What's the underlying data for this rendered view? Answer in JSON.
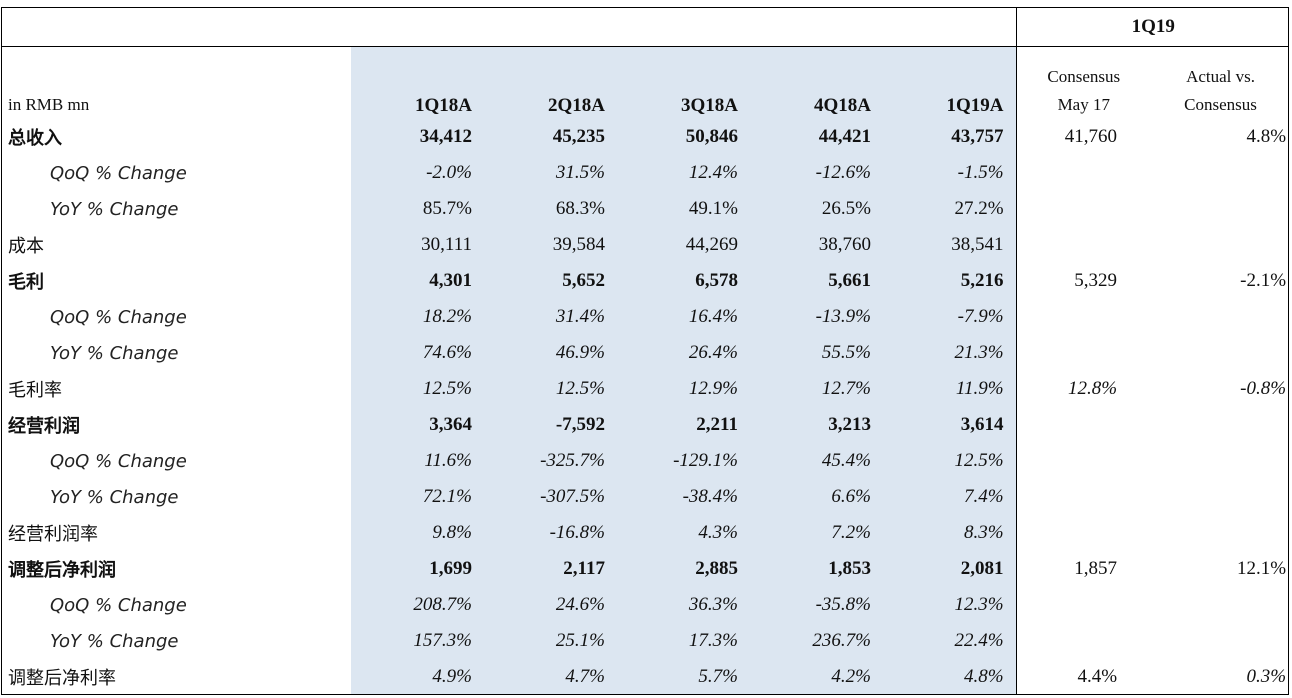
{
  "header": {
    "unit_label": "in RMB mn",
    "group_label": "1Q19",
    "periods": [
      "1Q18A",
      "2Q18A",
      "3Q18A",
      "4Q18A",
      "1Q19A"
    ],
    "consensus_label_line1": "Consensus",
    "consensus_label_line2": "May 17",
    "actual_vs_line1": "Actual vs.",
    "actual_vs_line2": "Consensus"
  },
  "rows": [
    {
      "label": "总收入",
      "style": "bold",
      "values": [
        "34,412",
        "45,235",
        "50,846",
        "44,421",
        "43,757"
      ],
      "consensus": "41,760",
      "actual_vs": "4.8%"
    },
    {
      "label": "QoQ % Change",
      "style": "sub-italic",
      "values": [
        "-2.0%",
        "31.5%",
        "12.4%",
        "-12.6%",
        "-1.5%"
      ],
      "consensus": "",
      "actual_vs": ""
    },
    {
      "label": "YoY % Change",
      "style": "sub",
      "values": [
        "85.7%",
        "68.3%",
        "49.1%",
        "26.5%",
        "27.2%"
      ],
      "consensus": "",
      "actual_vs": ""
    },
    {
      "label": "成本",
      "style": "normal",
      "values": [
        "30,111",
        "39,584",
        "44,269",
        "38,760",
        "38,541"
      ],
      "consensus": "",
      "actual_vs": ""
    },
    {
      "label": "毛利",
      "style": "bold",
      "values": [
        "4,301",
        "5,652",
        "6,578",
        "5,661",
        "5,216"
      ],
      "consensus": "5,329",
      "actual_vs": "-2.1%"
    },
    {
      "label": "QoQ % Change",
      "style": "sub-italic",
      "values": [
        "18.2%",
        "31.4%",
        "16.4%",
        "-13.9%",
        "-7.9%"
      ],
      "consensus": "",
      "actual_vs": ""
    },
    {
      "label": "YoY % Change",
      "style": "sub-italic",
      "values": [
        "74.6%",
        "46.9%",
        "26.4%",
        "55.5%",
        "21.3%"
      ],
      "consensus": "",
      "actual_vs": ""
    },
    {
      "label": "毛利率",
      "style": "normal-italic",
      "values": [
        "12.5%",
        "12.5%",
        "12.9%",
        "12.7%",
        "11.9%"
      ],
      "consensus": "12.8%",
      "actual_vs": "-0.8%"
    },
    {
      "label": "经营利润",
      "style": "bold",
      "values": [
        "3,364",
        "-7,592",
        "2,211",
        "3,213",
        "3,614"
      ],
      "consensus": "",
      "actual_vs": ""
    },
    {
      "label": "QoQ % Change",
      "style": "sub-italic",
      "values": [
        "11.6%",
        "-325.7%",
        "-129.1%",
        "45.4%",
        "12.5%"
      ],
      "consensus": "",
      "actual_vs": ""
    },
    {
      "label": "YoY % Change",
      "style": "sub-italic",
      "values": [
        "72.1%",
        "-307.5%",
        "-38.4%",
        "6.6%",
        "7.4%"
      ],
      "consensus": "",
      "actual_vs": ""
    },
    {
      "label": "经营利润率",
      "style": "normal-italic",
      "values": [
        "9.8%",
        "-16.8%",
        "4.3%",
        "7.2%",
        "8.3%"
      ],
      "consensus": "",
      "actual_vs": ""
    },
    {
      "label": "调整后净利润",
      "style": "bold",
      "values": [
        "1,699",
        "2,117",
        "2,885",
        "1,853",
        "2,081"
      ],
      "consensus": "1,857",
      "actual_vs": "12.1%"
    },
    {
      "label": "QoQ % Change",
      "style": "sub-italic",
      "values": [
        "208.7%",
        "24.6%",
        "36.3%",
        "-35.8%",
        "12.3%"
      ],
      "consensus": "",
      "actual_vs": ""
    },
    {
      "label": "YoY % Change",
      "style": "sub-italic",
      "values": [
        "157.3%",
        "25.1%",
        "17.3%",
        "236.7%",
        "22.4%"
      ],
      "consensus": "",
      "actual_vs": ""
    },
    {
      "label": "调整后净利率",
      "style": "normal-mixed",
      "values": [
        "4.9%",
        "4.7%",
        "5.7%",
        "4.2%",
        "4.8%"
      ],
      "consensus": "4.4%",
      "actual_vs": "0.3%"
    }
  ]
}
